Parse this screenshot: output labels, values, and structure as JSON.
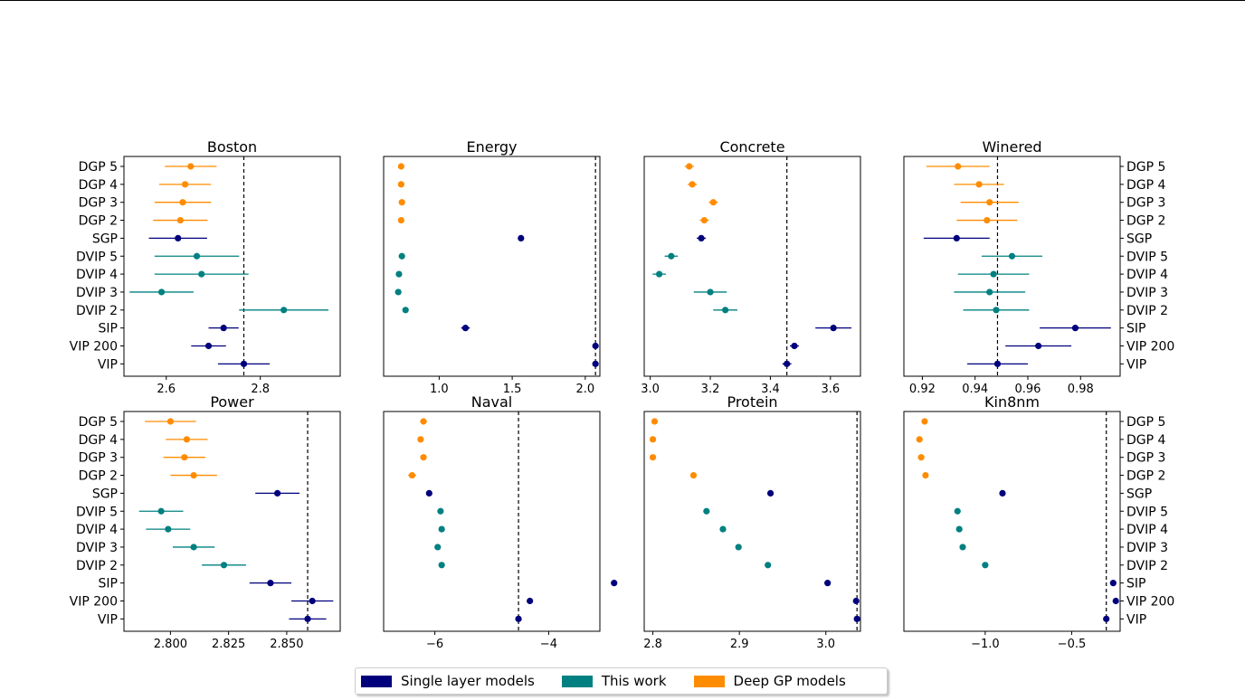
{
  "figure": {
    "colors": {
      "single": "#00007d",
      "work": "#008080",
      "deep": "#ff8c00"
    },
    "legend": [
      {
        "label": "Single layer models",
        "color": "#00007d"
      },
      {
        "label": "This work",
        "color": "#008080"
      },
      {
        "label": "Deep GP models",
        "color": "#ff8c00"
      }
    ]
  },
  "chart_data": [
    {
      "type": "scatter",
      "title": "Boston",
      "xlim": [
        2.51,
        2.97
      ],
      "xticks": [
        2.6,
        2.8
      ],
      "xtick_labels": [
        "2.6",
        "2.8"
      ],
      "reference": 2.765,
      "categories": [
        "DGP 5",
        "DGP 4",
        "DGP 3",
        "DGP 2",
        "SGP",
        "DVIP 5",
        "DVIP 4",
        "DVIP 3",
        "DVIP 2",
        "SIP",
        "VIP 200",
        "VIP"
      ],
      "groups": [
        "deep",
        "deep",
        "deep",
        "deep",
        "single",
        "work",
        "work",
        "work",
        "work",
        "single",
        "single",
        "single"
      ],
      "values": [
        2.652,
        2.64,
        2.635,
        2.63,
        2.625,
        2.665,
        2.675,
        2.59,
        2.85,
        2.722,
        2.69,
        2.765
      ],
      "err": [
        0.055,
        0.055,
        0.06,
        0.058,
        0.062,
        0.09,
        0.1,
        0.068,
        0.095,
        0.032,
        0.037,
        0.055
      ]
    },
    {
      "type": "scatter",
      "title": "Energy",
      "xlim": [
        0.62,
        2.1
      ],
      "xticks": [
        1.0,
        1.5,
        2.0
      ],
      "xtick_labels": [
        "1.0",
        "1.5",
        "2.0"
      ],
      "reference": 2.07,
      "categories": [
        "DGP 5",
        "DGP 4",
        "DGP 3",
        "DGP 2",
        "SGP",
        "DVIP 5",
        "DVIP 4",
        "DVIP 3",
        "DVIP 2",
        "SIP",
        "VIP 200",
        "VIP"
      ],
      "groups": [
        "deep",
        "deep",
        "deep",
        "deep",
        "single",
        "work",
        "work",
        "work",
        "work",
        "single",
        "single",
        "single"
      ],
      "values": [
        0.74,
        0.74,
        0.745,
        0.74,
        1.56,
        0.745,
        0.725,
        0.72,
        0.77,
        1.18,
        2.07,
        2.07
      ],
      "err": [
        0.01,
        0.01,
        0.01,
        0.01,
        0.015,
        0.01,
        0.01,
        0.01,
        0.012,
        0.03,
        0.012,
        0.012
      ]
    },
    {
      "type": "scatter",
      "title": "Concrete",
      "xlim": [
        2.98,
        3.7
      ],
      "xticks": [
        3.0,
        3.2,
        3.4,
        3.6
      ],
      "xtick_labels": [
        "3.0",
        "3.2",
        "3.4",
        "3.6"
      ],
      "reference": 3.455,
      "categories": [
        "DGP 5",
        "DGP 4",
        "DGP 3",
        "DGP 2",
        "SGP",
        "DVIP 5",
        "DVIP 4",
        "DVIP 3",
        "DVIP 2",
        "SIP",
        "VIP 200",
        "VIP"
      ],
      "groups": [
        "deep",
        "deep",
        "deep",
        "deep",
        "single",
        "work",
        "work",
        "work",
        "work",
        "single",
        "single",
        "single"
      ],
      "values": [
        3.13,
        3.14,
        3.21,
        3.18,
        3.17,
        3.07,
        3.03,
        3.2,
        3.25,
        3.61,
        3.48,
        3.455
      ],
      "err": [
        0.015,
        0.015,
        0.015,
        0.015,
        0.015,
        0.022,
        0.022,
        0.055,
        0.04,
        0.06,
        0.015,
        0.015
      ]
    },
    {
      "type": "scatter",
      "title": "Winered",
      "xlim": [
        0.913,
        0.995
      ],
      "xticks": [
        0.92,
        0.94,
        0.96,
        0.98
      ],
      "xtick_labels": [
        "0.92",
        "0.94",
        "0.96",
        "0.98"
      ],
      "reference": 0.9485,
      "categories": [
        "DGP 5",
        "DGP 4",
        "DGP 3",
        "DGP 2",
        "SGP",
        "DVIP 5",
        "DVIP 4",
        "DVIP 3",
        "DVIP 2",
        "SIP",
        "VIP 200",
        "VIP"
      ],
      "groups": [
        "deep",
        "deep",
        "deep",
        "deep",
        "single",
        "work",
        "work",
        "work",
        "work",
        "single",
        "single",
        "single"
      ],
      "values": [
        0.9335,
        0.9415,
        0.9455,
        0.9445,
        0.933,
        0.954,
        0.947,
        0.9455,
        0.948,
        0.978,
        0.964,
        0.9485
      ],
      "err": [
        0.012,
        0.0095,
        0.011,
        0.0115,
        0.0125,
        0.0115,
        0.0135,
        0.0135,
        0.0125,
        0.0135,
        0.0125,
        0.0115
      ]
    },
    {
      "type": "scatter",
      "title": "Power",
      "xlim": [
        2.78,
        2.873
      ],
      "xticks": [
        2.8,
        2.825,
        2.85
      ],
      "xtick_labels": [
        "2.800",
        "2.825",
        "2.850"
      ],
      "reference": 2.859,
      "categories": [
        "DGP 5",
        "DGP 4",
        "DGP 3",
        "DGP 2",
        "SGP",
        "DVIP 5",
        "DVIP 4",
        "DVIP 3",
        "DVIP 2",
        "SIP",
        "VIP 200",
        "VIP"
      ],
      "groups": [
        "deep",
        "deep",
        "deep",
        "deep",
        "single",
        "work",
        "work",
        "work",
        "work",
        "single",
        "single",
        "single"
      ],
      "values": [
        2.8,
        2.807,
        2.806,
        2.81,
        2.846,
        2.796,
        2.799,
        2.81,
        2.823,
        2.843,
        2.861,
        2.859
      ],
      "err": [
        0.011,
        0.009,
        0.009,
        0.01,
        0.0095,
        0.0095,
        0.0095,
        0.009,
        0.0095,
        0.009,
        0.009,
        0.008
      ]
    },
    {
      "type": "scatter",
      "title": "Naval",
      "xlim": [
        -6.9,
        -3.1
      ],
      "xticks": [
        -6,
        -4
      ],
      "xtick_labels": [
        "−6",
        "−4"
      ],
      "reference": -4.53,
      "categories": [
        "DGP 5",
        "DGP 4",
        "DGP 3",
        "DGP 2",
        "SGP",
        "DVIP 5",
        "DVIP 4",
        "DVIP 3",
        "DVIP 2",
        "SIP",
        "VIP 200",
        "VIP"
      ],
      "groups": [
        "deep",
        "deep",
        "deep",
        "deep",
        "single",
        "work",
        "work",
        "work",
        "work",
        "single",
        "single",
        "single"
      ],
      "values": [
        -6.2,
        -6.25,
        -6.2,
        -6.4,
        -6.1,
        -5.9,
        -5.88,
        -5.95,
        -5.88,
        -2.85,
        -4.33,
        -4.53
      ],
      "err": [
        0.06,
        0.05,
        0.05,
        0.07,
        0.05,
        0.04,
        0.04,
        0.04,
        0.05,
        0.04,
        0.05,
        0.05
      ]
    },
    {
      "type": "scatter",
      "title": "Protein",
      "xlim": [
        2.79,
        3.04
      ],
      "xticks": [
        2.8,
        2.9,
        3.0
      ],
      "xtick_labels": [
        "2.8",
        "2.9",
        "3.0"
      ],
      "reference": 3.036,
      "categories": [
        "DGP 5",
        "DGP 4",
        "DGP 3",
        "DGP 2",
        "SGP",
        "DVIP 5",
        "DVIP 4",
        "DVIP 3",
        "DVIP 2",
        "SIP",
        "VIP 200",
        "VIP"
      ],
      "groups": [
        "deep",
        "deep",
        "deep",
        "deep",
        "single",
        "work",
        "work",
        "work",
        "work",
        "single",
        "single",
        "single"
      ],
      "values": [
        2.802,
        2.8,
        2.8,
        2.847,
        2.936,
        2.862,
        2.881,
        2.899,
        2.933,
        3.002,
        3.035,
        3.036
      ],
      "err": [
        0.002,
        0.002,
        0.002,
        0.002,
        0.002,
        0.002,
        0.002,
        0.002,
        0.002,
        0.002,
        0.002,
        0.002
      ]
    },
    {
      "type": "scatter",
      "title": "Kin8nm",
      "xlim": [
        -1.47,
        -0.22
      ],
      "xticks": [
        -1.0,
        -0.5
      ],
      "xtick_labels": [
        "−1.0",
        "−0.5"
      ],
      "reference": -0.3,
      "categories": [
        "DGP 5",
        "DGP 4",
        "DGP 3",
        "DGP 2",
        "SGP",
        "DVIP 5",
        "DVIP 4",
        "DVIP 3",
        "DVIP 2",
        "SIP",
        "VIP 200",
        "VIP"
      ],
      "groups": [
        "deep",
        "deep",
        "deep",
        "deep",
        "single",
        "work",
        "work",
        "work",
        "work",
        "single",
        "single",
        "single"
      ],
      "values": [
        -1.35,
        -1.38,
        -1.37,
        -1.345,
        -0.9,
        -1.16,
        -1.15,
        -1.13,
        -1.0,
        -0.26,
        -0.245,
        -0.3
      ],
      "err": [
        0.01,
        0.01,
        0.01,
        0.01,
        0.01,
        0.01,
        0.01,
        0.01,
        0.01,
        0.01,
        0.01,
        0.01
      ]
    }
  ]
}
